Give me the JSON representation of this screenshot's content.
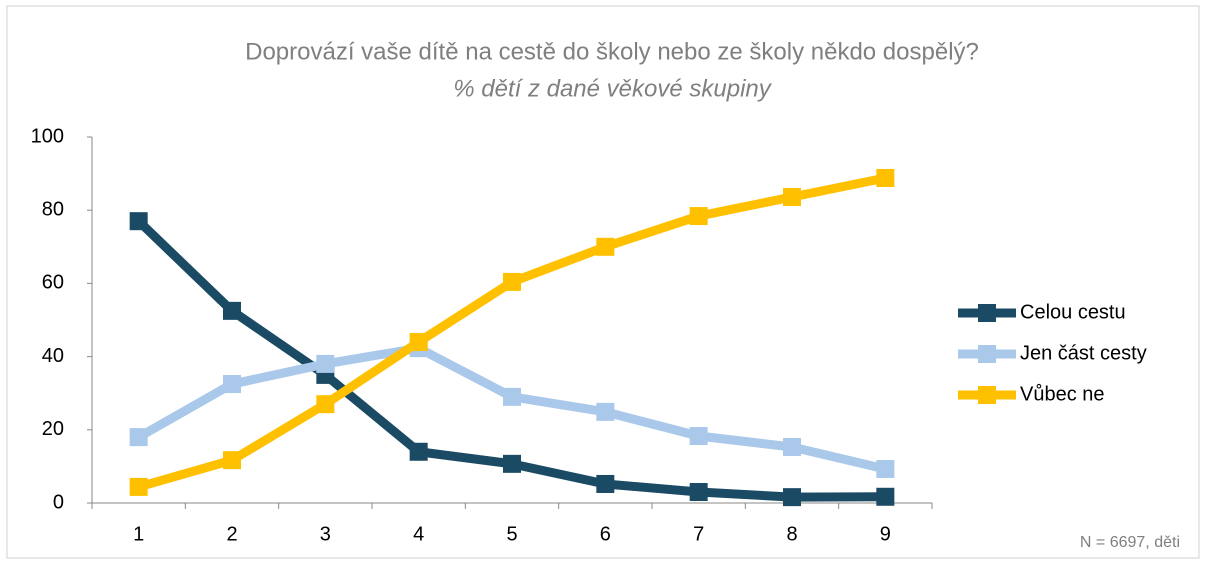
{
  "chart_data": {
    "type": "line",
    "title": "Doprovází vaše dítě na cestě do školy nebo ze školy někdo dospělý?",
    "subtitle": "% dětí z dané věkové skupiny",
    "note": "N = 6697, děti",
    "categories": [
      "1",
      "2",
      "3",
      "4",
      "5",
      "6",
      "7",
      "8",
      "9"
    ],
    "series": [
      {
        "name": "Celou cestu",
        "color": "#1b4a64",
        "values": [
          77,
          52.5,
          35,
          14,
          10.7,
          5.2,
          3,
          1.6,
          1.7
        ]
      },
      {
        "name": "Jen část cesty",
        "color": "#a9c8ea",
        "values": [
          18,
          32.5,
          38,
          42.3,
          29,
          24.9,
          18.3,
          15.3,
          9.3
        ]
      },
      {
        "name": "Vůbec ne",
        "color": "#ffc000",
        "values": [
          4.4,
          11.7,
          27,
          44,
          60.4,
          70,
          78.4,
          83.6,
          88.8
        ]
      }
    ],
    "ylim": [
      0,
      100
    ],
    "yticks": [
      0,
      20,
      40,
      60,
      80,
      100
    ],
    "grid": false,
    "legend": "right"
  }
}
